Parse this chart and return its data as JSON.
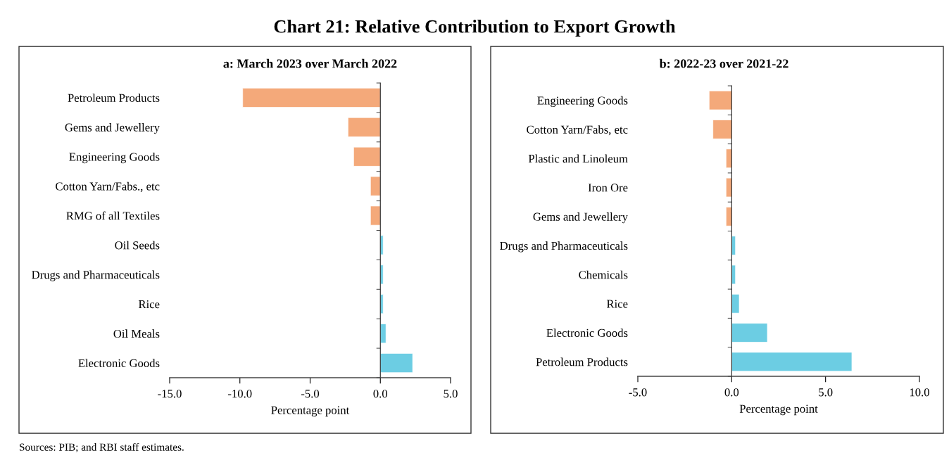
{
  "chart_data": [
    {
      "type": "bar",
      "orientation": "horizontal",
      "title": "a: March 2023 over March 2022",
      "xlabel": "Percentage point",
      "categories": [
        "Petroleum Products",
        "Gems and Jewellery",
        "Engineering Goods",
        "Cotton Yarn/Fabs., etc",
        "RMG of all Textiles",
        "Oil Seeds",
        "Drugs and Pharmaceuticals",
        "Rice",
        "Oil Meals",
        "Electronic Goods"
      ],
      "values": [
        -9.8,
        -2.3,
        -1.9,
        -0.7,
        -0.7,
        0.2,
        0.2,
        0.2,
        0.4,
        2.3
      ],
      "colors": [
        "#f4a97a",
        "#f4a97a",
        "#f4a97a",
        "#f4a97a",
        "#f4a97a",
        "#6ccde3",
        "#6ccde3",
        "#6ccde3",
        "#6ccde3",
        "#6ccde3"
      ],
      "xlim": [
        -15,
        5
      ],
      "xticks": [
        {
          "value": -15,
          "label": "-15.0"
        },
        {
          "value": -10,
          "label": "-10.0"
        },
        {
          "value": -5,
          "label": "-5.0"
        },
        {
          "value": 0,
          "label": "0.0"
        },
        {
          "value": 5,
          "label": "5.0"
        }
      ],
      "annotations": [
        "Chart 21: Relative Contribution to Export Growth",
        "Sources: PIB; and RBI staff estimates."
      ]
    },
    {
      "type": "bar",
      "orientation": "horizontal",
      "title": "b: 2022-23 over 2021-22",
      "xlabel": "Percentage point",
      "categories": [
        "Engineering Goods",
        "Cotton Yarn/Fabs, etc",
        "Plastic and Linoleum",
        "Iron Ore",
        "Gems and Jewellery",
        "Drugs and Pharmaceuticals",
        "Chemicals",
        "Rice",
        "Electronic Goods",
        "Petroleum Products"
      ],
      "values": [
        -1.2,
        -1.0,
        -0.3,
        -0.3,
        -0.3,
        0.2,
        0.2,
        0.4,
        1.9,
        6.4
      ],
      "colors": [
        "#f4a97a",
        "#f4a97a",
        "#f4a97a",
        "#f4a97a",
        "#f4a97a",
        "#6ccde3",
        "#6ccde3",
        "#6ccde3",
        "#6ccde3",
        "#6ccde3"
      ],
      "xlim": [
        -5,
        10
      ],
      "xticks": [
        {
          "value": -5,
          "label": "-5.0"
        },
        {
          "value": 0,
          "label": "0.0"
        },
        {
          "value": 5,
          "label": "5.0"
        },
        {
          "value": 10,
          "label": "10.0"
        }
      ]
    }
  ]
}
